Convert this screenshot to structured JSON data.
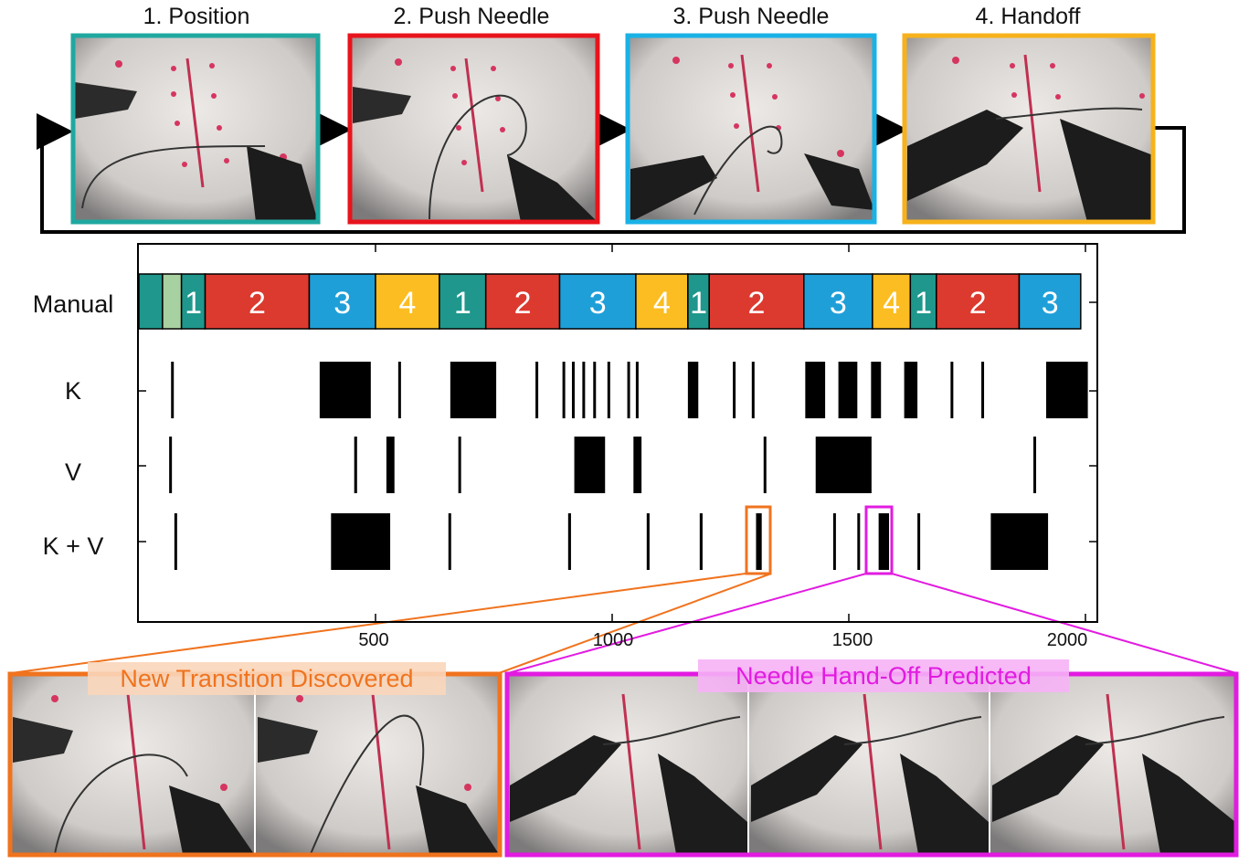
{
  "stages": [
    {
      "label": "1. Position",
      "color": "#1fa8a0"
    },
    {
      "label": "2. Push Needle",
      "color": "#e8141c"
    },
    {
      "label": "3. Push Needle",
      "color": "#19b2e6"
    },
    {
      "label": "4. Handoff",
      "color": "#f7b21b"
    }
  ],
  "rows": {
    "manual": "Manual",
    "k": "K",
    "v": "V",
    "kv": "K + V"
  },
  "axis": {
    "ticks": [
      "500",
      "1000",
      "1500",
      "2000"
    ],
    "tick_values": [
      500,
      1000,
      1500,
      2000
    ],
    "xlim": [
      0,
      2000
    ]
  },
  "segment_colors": {
    "1": "#1f978c",
    "2": "#dc3a2f",
    "3": "#1f9fd8",
    "4": "#fbbd21",
    "0": "#a8d1a1"
  },
  "callouts": {
    "transition": "New Transition Discovered",
    "handoff": "Needle Hand-Off Predicted",
    "transition_color": "#f0731e",
    "handoff_color": "#e21be1"
  },
  "chart_data": {
    "type": "bar",
    "manual_segments": [
      {
        "start": 0,
        "end": 50,
        "label": "",
        "phase": "1"
      },
      {
        "start": 50,
        "end": 90,
        "label": "",
        "phase": "0"
      },
      {
        "start": 90,
        "end": 140,
        "label": "1",
        "phase": "1"
      },
      {
        "start": 140,
        "end": 360,
        "label": "2",
        "phase": "2"
      },
      {
        "start": 360,
        "end": 500,
        "label": "3",
        "phase": "3"
      },
      {
        "start": 500,
        "end": 635,
        "label": "4",
        "phase": "4"
      },
      {
        "start": 635,
        "end": 733,
        "label": "1",
        "phase": "1"
      },
      {
        "start": 733,
        "end": 889,
        "label": "2",
        "phase": "2"
      },
      {
        "start": 889,
        "end": 1050,
        "label": "3",
        "phase": "3"
      },
      {
        "start": 1050,
        "end": 1160,
        "label": "4",
        "phase": "4"
      },
      {
        "start": 1160,
        "end": 1205,
        "label": "1",
        "phase": "1"
      },
      {
        "start": 1205,
        "end": 1405,
        "label": "2",
        "phase": "2"
      },
      {
        "start": 1405,
        "end": 1550,
        "label": "3",
        "phase": "3"
      },
      {
        "start": 1550,
        "end": 1630,
        "label": "4",
        "phase": "4"
      },
      {
        "start": 1630,
        "end": 1685,
        "label": "1",
        "phase": "1"
      },
      {
        "start": 1685,
        "end": 1860,
        "label": "2",
        "phase": "2"
      },
      {
        "start": 1860,
        "end": 1990,
        "label": "3",
        "phase": "3"
      }
    ],
    "K": [
      [
        68,
        72
      ],
      [
        382,
        490
      ],
      [
        548,
        553
      ],
      [
        658,
        755
      ],
      [
        838,
        843
      ],
      [
        895,
        900
      ],
      [
        915,
        920
      ],
      [
        937,
        942
      ],
      [
        960,
        965
      ],
      [
        990,
        995
      ],
      [
        1032,
        1037
      ],
      [
        1050,
        1055
      ],
      [
        1160,
        1182
      ],
      [
        1255,
        1260
      ],
      [
        1295,
        1300
      ],
      [
        1408,
        1450
      ],
      [
        1478,
        1518
      ],
      [
        1547,
        1568
      ],
      [
        1617,
        1645
      ],
      [
        1715,
        1720
      ],
      [
        1780,
        1785
      ],
      [
        1917,
        2005
      ]
    ],
    "V": [
      [
        64,
        69
      ],
      [
        455,
        461
      ],
      [
        523,
        540
      ],
      [
        675,
        680
      ],
      [
        920,
        985
      ],
      [
        1045,
        1062
      ],
      [
        1320,
        1325
      ],
      [
        1430,
        1548
      ],
      [
        1890,
        1895
      ]
    ],
    "KV": [
      [
        75,
        80
      ],
      [
        406,
        531
      ],
      [
        654,
        659
      ],
      [
        907,
        913
      ],
      [
        1073,
        1079
      ],
      [
        1185,
        1191
      ],
      [
        1304,
        1316
      ],
      [
        1467,
        1471
      ],
      [
        1518,
        1522
      ],
      [
        1563,
        1585
      ],
      [
        1645,
        1650
      ],
      [
        1800,
        1921
      ]
    ]
  }
}
